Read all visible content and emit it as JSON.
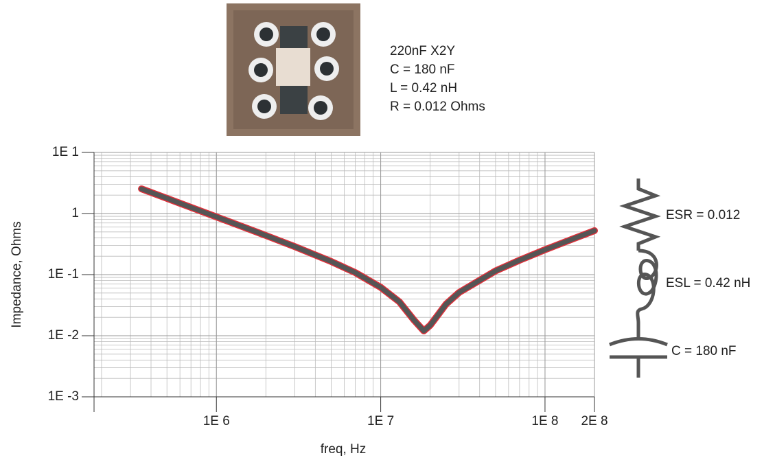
{
  "chart_data": {
    "type": "line",
    "ylabel": "Impedance, Ohms",
    "xlabel": "freq, Hz",
    "x": [
      350000,
      500000,
      700000,
      1000000,
      1500000,
      2000000,
      3000000,
      5000000,
      7000000,
      10000000,
      13000000,
      16000000,
      18300000,
      20000000,
      25000000,
      30000000,
      50000000,
      70000000,
      100000000,
      150000000,
      200000000
    ],
    "values": [
      2.53,
      1.77,
      1.26,
      0.88,
      0.586,
      0.437,
      0.287,
      0.164,
      0.108,
      0.062,
      0.0358,
      0.0178,
      0.012,
      0.0148,
      0.0329,
      0.0511,
      0.115,
      0.172,
      0.255,
      0.39,
      0.524
    ],
    "color": "#555555",
    "marker_color": "#e0303a",
    "xscale": "log",
    "yscale": "log",
    "grid": true,
    "minor_grid": true,
    "xlim": [
      180000,
      200000000
    ],
    "xticks": [
      {
        "value": 1000000,
        "label": "1E 6"
      },
      {
        "value": 10000000,
        "label": "1E 7"
      },
      {
        "value": 100000000,
        "label": "1E 8"
      },
      {
        "value": 200000000,
        "label": "2E 8"
      }
    ],
    "ylim": [
      0.001,
      10
    ],
    "yticks": [
      {
        "value": 0.001,
        "label": "1E -3"
      },
      {
        "value": 0.01,
        "label": "1E -2"
      },
      {
        "value": 0.1,
        "label": "1E -1"
      },
      1,
      {
        "value": 10,
        "label": "1E 1"
      }
    ],
    "annotations": [
      "220nF X2Y",
      "C = 180 nF",
      "L = 0.42 nH",
      "R = 0.012 Ohms"
    ],
    "circuit_labels": [
      "ESR = 0.012",
      "ESL = 0.42 nH",
      "C = 180 nF"
    ]
  }
}
